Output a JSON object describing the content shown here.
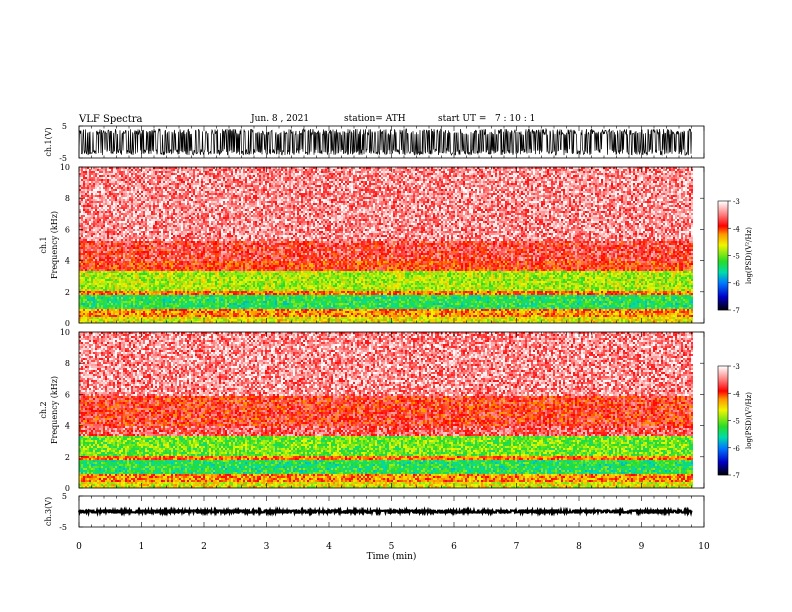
{
  "header": {
    "title": "VLF Spectra",
    "date": "Jun. 8 , 2021",
    "station": "station= ATH",
    "start": "start UT =   7 : 10 : 1"
  },
  "chart_data": [
    {
      "type": "line",
      "ylabel": "ch.1(V)",
      "ylim": [
        -5,
        5
      ],
      "yticks": [
        "5",
        "-5"
      ],
      "description_of_signal": "dense broadband waveform filling most of the range"
    },
    {
      "type": "heatmap",
      "ylabel_top": "ch.1",
      "ylabel": "Frequency (kHz)",
      "ylim": [
        0,
        10
      ],
      "yticks": [
        "10",
        "8",
        "6",
        "4",
        "2",
        "0"
      ],
      "xlim": [
        0,
        10
      ],
      "colorbar": {
        "label": "log(PSD)(V²/Hz)",
        "range": [
          -7,
          -3
        ],
        "ticks": [
          "-3",
          "-4",
          "-5",
          "-6",
          "-7"
        ]
      },
      "bands_khz": [
        {
          "from": 5.3,
          "to": 10,
          "level": -3.4
        },
        {
          "from": 4.0,
          "to": 5.3,
          "level": -3.7
        },
        {
          "from": 3.4,
          "to": 4.0,
          "level": -3.9
        },
        {
          "from": 2.1,
          "to": 3.4,
          "level": -4.8
        },
        {
          "from": 1.9,
          "to": 2.1,
          "level": -4.1
        },
        {
          "from": 0.9,
          "to": 1.9,
          "level": -5.3
        },
        {
          "from": 0.5,
          "to": 0.9,
          "level": -4.2
        },
        {
          "from": 0,
          "to": 0.5,
          "level": -4.6
        }
      ]
    },
    {
      "type": "heatmap",
      "ylabel_top": "ch.2",
      "ylabel": "Frequency (kHz)",
      "ylim": [
        0,
        10
      ],
      "yticks": [
        "10",
        "8",
        "6",
        "4",
        "2",
        "0"
      ],
      "xlim": [
        0,
        10
      ],
      "colorbar": {
        "label": "log(PSD)(V²/Hz)",
        "range": [
          -7,
          -3
        ],
        "ticks": [
          "-3",
          "-4",
          "-5",
          "-6",
          "-7"
        ]
      },
      "bands_khz": [
        {
          "from": 6.0,
          "to": 10,
          "level": -3.4
        },
        {
          "from": 4.1,
          "to": 6.0,
          "level": -3.8
        },
        {
          "from": 3.4,
          "to": 4.1,
          "level": -3.6
        },
        {
          "from": 2.1,
          "to": 3.4,
          "level": -5.0
        },
        {
          "from": 1.9,
          "to": 2.1,
          "level": -4.1
        },
        {
          "from": 0.9,
          "to": 1.9,
          "level": -5.3
        },
        {
          "from": 0.5,
          "to": 0.9,
          "level": -4.2
        },
        {
          "from": 0,
          "to": 0.5,
          "level": -4.6
        }
      ]
    },
    {
      "type": "line",
      "ylabel": "ch.3(V)",
      "ylim": [
        -5,
        5
      ],
      "yticks": [
        "5",
        "-5"
      ],
      "description_of_signal": "thin waveform near 0 V"
    }
  ],
  "xaxis": {
    "label": "Time (min)",
    "range": [
      0,
      10
    ],
    "data_end": 9.8,
    "ticks": [
      "0",
      "1",
      "2",
      "3",
      "4",
      "5",
      "6",
      "7",
      "8",
      "9",
      "10"
    ]
  }
}
